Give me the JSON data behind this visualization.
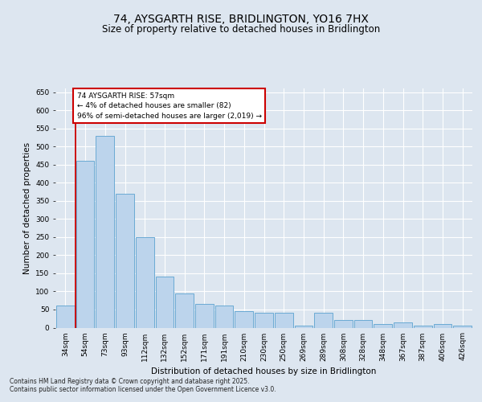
{
  "title": "74, AYSGARTH RISE, BRIDLINGTON, YO16 7HX",
  "subtitle": "Size of property relative to detached houses in Bridlington",
  "xlabel": "Distribution of detached houses by size in Bridlington",
  "ylabel": "Number of detached properties",
  "bins": [
    "34sqm",
    "54sqm",
    "73sqm",
    "93sqm",
    "112sqm",
    "132sqm",
    "152sqm",
    "171sqm",
    "191sqm",
    "210sqm",
    "230sqm",
    "250sqm",
    "269sqm",
    "289sqm",
    "308sqm",
    "328sqm",
    "348sqm",
    "367sqm",
    "387sqm",
    "406sqm",
    "426sqm"
  ],
  "values": [
    62,
    460,
    530,
    370,
    250,
    140,
    95,
    65,
    60,
    45,
    40,
    40,
    5,
    40,
    20,
    20,
    10,
    15,
    5,
    10,
    5
  ],
  "bar_color": "#bcd4ec",
  "bar_edge_color": "#6aaad4",
  "vline_color": "#cc0000",
  "annotation_text": "74 AYSGARTH RISE: 57sqm\n← 4% of detached houses are smaller (82)\n96% of semi-detached houses are larger (2,019) →",
  "annotation_box_color": "#ffffff",
  "annotation_box_edge": "#cc0000",
  "ylim": [
    0,
    660
  ],
  "yticks": [
    0,
    50,
    100,
    150,
    200,
    250,
    300,
    350,
    400,
    450,
    500,
    550,
    600,
    650
  ],
  "bg_color": "#dde6f0",
  "plot_bg_color": "#dde6f0",
  "grid_color": "#ffffff",
  "footer_line1": "Contains HM Land Registry data © Crown copyright and database right 2025.",
  "footer_line2": "Contains public sector information licensed under the Open Government Licence v3.0.",
  "title_fontsize": 10,
  "subtitle_fontsize": 8.5,
  "tick_fontsize": 6.5,
  "label_fontsize": 7.5,
  "footer_fontsize": 5.5
}
